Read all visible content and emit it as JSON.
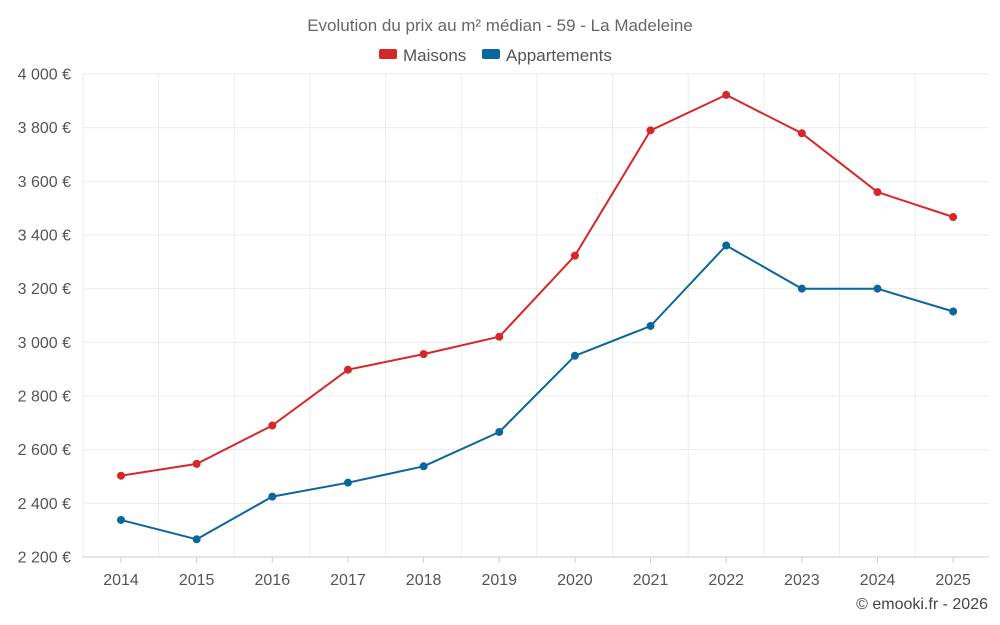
{
  "chart_data": {
    "type": "line",
    "title": "Evolution du prix au m² médian - 59 - La Madeleine",
    "categories": [
      "2014",
      "2015",
      "2016",
      "2017",
      "2018",
      "2019",
      "2020",
      "2021",
      "2022",
      "2023",
      "2024",
      "2025"
    ],
    "series": [
      {
        "name": "Maisons",
        "color": "#d62728",
        "values": [
          2503,
          2547,
          2690,
          2898,
          2956,
          3021,
          3323,
          3790,
          3922,
          3779,
          3560,
          3467
        ]
      },
      {
        "name": "Appartements",
        "color": "#0b66a0",
        "values": [
          2338,
          2266,
          2425,
          2477,
          2538,
          2666,
          2950,
          3061,
          3361,
          3200,
          3200,
          3115
        ]
      }
    ],
    "y_ticks": [
      "2 200 €",
      "2 400 €",
      "2 600 €",
      "2 800 €",
      "3 000 €",
      "3 200 €",
      "3 400 €",
      "3 600 €",
      "3 800 €",
      "4 000 €"
    ],
    "ylim": [
      2200,
      4000
    ],
    "ytick_step": 200,
    "grid": true,
    "legend_position": "top-center",
    "credit": "© emooki.fr - 2026"
  }
}
